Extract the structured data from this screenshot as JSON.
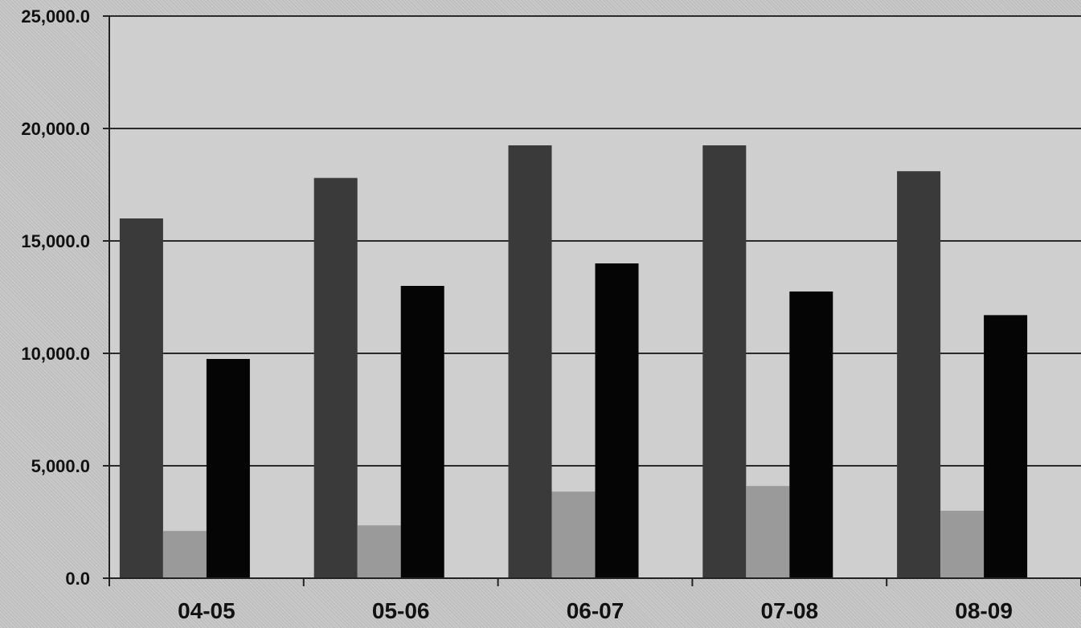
{
  "chart_data": {
    "type": "bar",
    "categories": [
      "04-05",
      "05-06",
      "06-07",
      "07-08",
      "08-09"
    ],
    "series": [
      {
        "values": [
          16000,
          17800,
          19250,
          19250,
          18100
        ],
        "color": "#3a3a3a"
      },
      {
        "values": [
          2100,
          2350,
          3850,
          4100,
          3000
        ],
        "color": "#9a9a9a"
      },
      {
        "values": [
          9750,
          13000,
          14000,
          12750,
          11700
        ],
        "color": "#050505"
      }
    ],
    "ylim": [
      0,
      25000
    ],
    "yticks": [
      "0.0",
      "5,000.0",
      "10,000.0",
      "15,000.0",
      "20,000.0",
      "25,000.0"
    ],
    "ytick_values": [
      0,
      5000,
      10000,
      15000,
      20000,
      25000
    ],
    "grid": true,
    "legend": "none",
    "title": "",
    "xlabel": "",
    "ylabel": ""
  }
}
